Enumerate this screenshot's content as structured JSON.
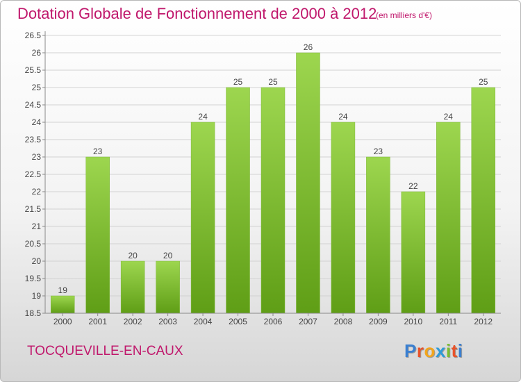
{
  "title": "Dotation Globale de Fonctionnement de 2000 à 2012",
  "unit_note": "(en milliers d'€)",
  "commune": "TOCQUEVILLE-EN-CAUX",
  "brand": {
    "text": "Proxiti",
    "letter_colors": [
      "#3a7fd1",
      "#e8532b",
      "#f2a51c",
      "#2e9bd8",
      "#7bbf2f",
      "#e8532b",
      "#3a7fd1"
    ]
  },
  "colors": {
    "title": "#c0186c",
    "bar_light": "#9dd64f",
    "bar_dark": "#5f9e16",
    "grid": "#d2d2d2",
    "axis": "#888888"
  },
  "chart_data": {
    "type": "bar",
    "categories": [
      "2000",
      "2001",
      "2002",
      "2003",
      "2004",
      "2005",
      "2006",
      "2007",
      "2008",
      "2009",
      "2010",
      "2011",
      "2012"
    ],
    "values": [
      19,
      23,
      20,
      20,
      24,
      25,
      25,
      26,
      24,
      23,
      22,
      24,
      25
    ],
    "data_labels": [
      "19",
      "23",
      "20",
      "20",
      "24",
      "25",
      "25",
      "26",
      "24",
      "23",
      "22",
      "24",
      "25"
    ],
    "yticks": [
      "18.5",
      "19",
      "19.5",
      "20",
      "20.5",
      "21",
      "21.5",
      "22",
      "22.5",
      "23",
      "23.5",
      "24",
      "24.5",
      "25",
      "25.5",
      "26",
      "26.5"
    ],
    "ylim": [
      18.5,
      26.5
    ],
    "title": "Dotation Globale de Fonctionnement de 2000 à 2012",
    "xlabel": "",
    "ylabel": "",
    "grid": true,
    "legend": "none"
  }
}
